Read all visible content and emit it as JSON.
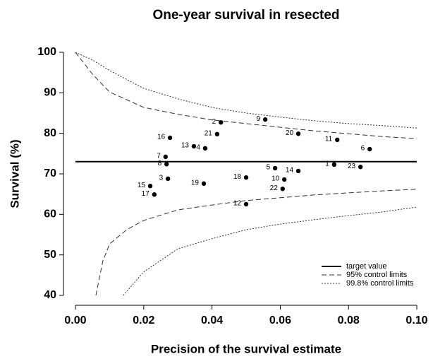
{
  "chart_data": {
    "type": "funnel",
    "title": "One-year survival in resected",
    "x_label": "Precision of the survival estimate",
    "y_label": "Survival (%)",
    "xlim": [
      0,
      0.1
    ],
    "ylim": [
      40,
      100
    ],
    "xticks": [
      {
        "value": 0,
        "label": "0.00"
      },
      {
        "value": 0.02,
        "label": "0.02"
      },
      {
        "value": 0.04,
        "label": "0.04"
      },
      {
        "value": 0.06,
        "label": "0.06"
      },
      {
        "value": 0.08,
        "label": "0.08"
      },
      {
        "value": 0.1,
        "label": "0.10"
      }
    ],
    "yticks": [
      40,
      50,
      60,
      70,
      80,
      90,
      100
    ],
    "legend": "bottom-right",
    "series": [
      {
        "name": "target value",
        "style": "solid",
        "color": "#000000",
        "lines": [
          {
            "x": [
              0,
              0.1
            ],
            "values": [
              73,
              73
            ]
          }
        ]
      },
      {
        "name": "95% control limits",
        "style": "dashed",
        "color": "#333333",
        "lines": [
          {
            "x": [
              0,
              0.005,
              0.01,
              0.02,
              0.03,
              0.04,
              0.05,
              0.06,
              0.07,
              0.08,
              0.09,
              0.1
            ],
            "values": [
              100,
              94.6,
              90.2,
              86.4,
              84.7,
              83.3,
              82.4,
              81.5,
              80.6,
              79.9,
              79.2,
              78.7
            ]
          },
          {
            "x": [
              0.006,
              0.008,
              0.01,
              0.015,
              0.02,
              0.03,
              0.04,
              0.05,
              0.06,
              0.07,
              0.08,
              0.09,
              0.1
            ],
            "values": [
              40,
              48.4,
              52.7,
              56.2,
              58.5,
              61.1,
              62.3,
              63.4,
              64.1,
              64.8,
              65.3,
              65.8,
              66.2
            ]
          }
        ]
      },
      {
        "name": "99.8% control limits",
        "style": "dotted",
        "color": "#333333",
        "lines": [
          {
            "x": [
              0,
              0.005,
              0.01,
              0.02,
              0.03,
              0.04,
              0.05,
              0.06,
              0.07,
              0.08,
              0.09,
              0.1
            ],
            "values": [
              100,
              98.1,
              95.5,
              91.1,
              88.5,
              86.4,
              85,
              84,
              83.1,
              82.4,
              81.9,
              81.3
            ]
          },
          {
            "x": [
              0.014,
              0.02,
              0.03,
              0.04,
              0.05,
              0.06,
              0.07,
              0.08,
              0.09,
              0.1
            ],
            "values": [
              40,
              45.8,
              51.5,
              54,
              56.2,
              57.6,
              58.7,
              59.7,
              60.6,
              61.8
            ]
          }
        ]
      }
    ],
    "points": {
      "color": "#000000",
      "labels": [
        "1",
        "2",
        "3",
        "4",
        "5",
        "6",
        "7",
        "8",
        "9",
        "10",
        "11",
        "12",
        "13",
        "14",
        "15",
        "16",
        "17",
        "18",
        "19",
        "20",
        "21",
        "22",
        "23"
      ],
      "x": [
        0.0758,
        0.0426,
        0.0271,
        0.038,
        0.0585,
        0.0862,
        0.0264,
        0.0267,
        0.0556,
        0.0612,
        0.0767,
        0.05,
        0.0347,
        0.0653,
        0.0219,
        0.0277,
        0.0231,
        0.05,
        0.0376,
        0.0653,
        0.0415,
        0.0607,
        0.0835
      ],
      "values": [
        72.3,
        82.7,
        68.8,
        76.3,
        71.4,
        76.1,
        74.2,
        72.4,
        83.4,
        68.6,
        78.4,
        62.5,
        76.8,
        70.7,
        67,
        78.9,
        64.9,
        69.1,
        67.6,
        79.9,
        79.8,
        66.3,
        71.7
      ]
    }
  }
}
